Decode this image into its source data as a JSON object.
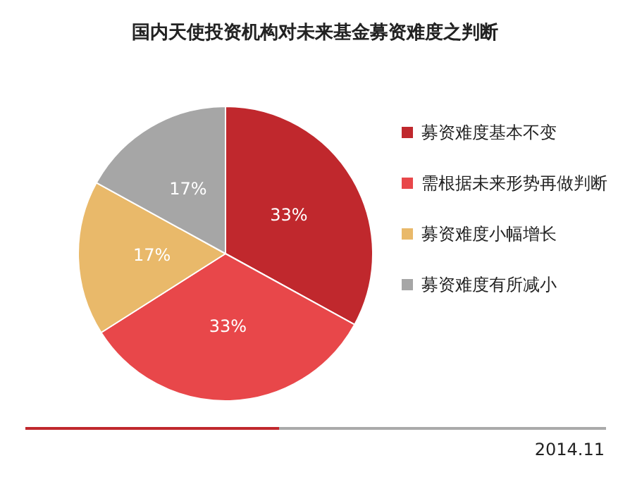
{
  "chart_data": {
    "type": "pie",
    "title": "国内天使投资机构对未来基金募资难度之判断",
    "categories": [
      "募资难度基本不变",
      "需根据未来形势再做判断",
      "募资难度小幅增长",
      "募资难度有所减小"
    ],
    "values": [
      33,
      33,
      17,
      17
    ],
    "colors": [
      "#c0282d",
      "#e8474a",
      "#e9b96a",
      "#a6a6a6"
    ],
    "value_labels": [
      "33%",
      "33%",
      "17%",
      "17%"
    ],
    "legend": "right",
    "annotations": [
      "2014.11"
    ]
  }
}
